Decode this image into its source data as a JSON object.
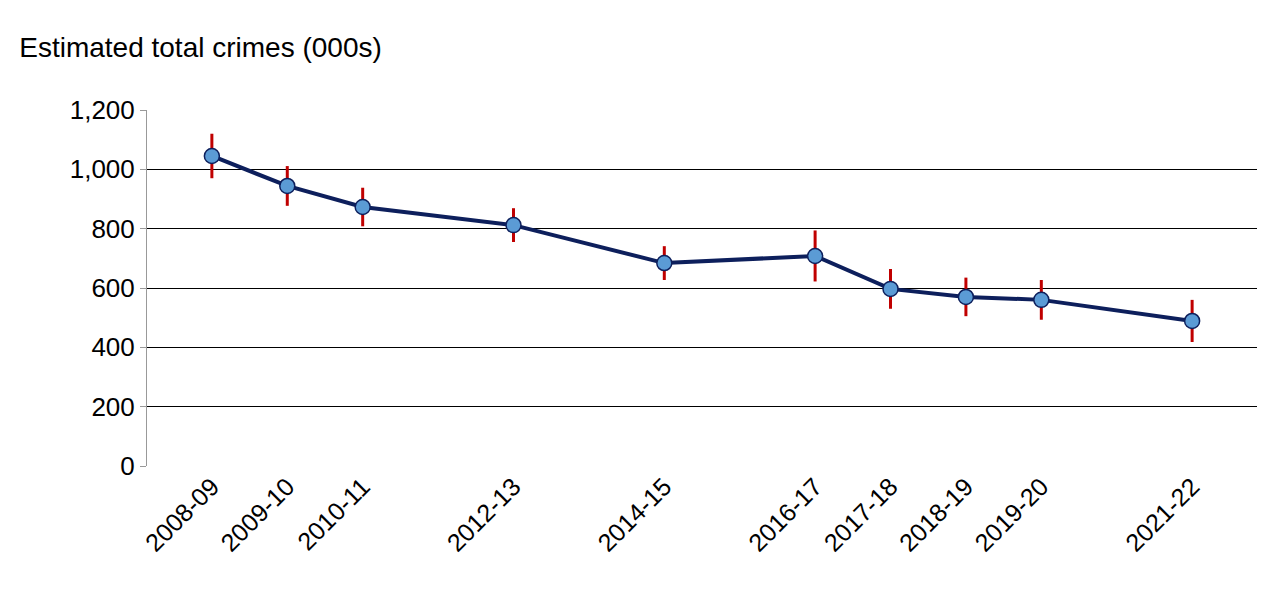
{
  "chart_data": {
    "type": "line",
    "title": "Estimated total crimes (000s)",
    "categories": [
      "2008-09",
      "2009-10",
      "2010-11",
      null,
      "2012-13",
      null,
      "2014-15",
      null,
      "2016-17",
      "2017-18",
      "2018-19",
      "2019-20",
      null,
      "2021-22"
    ],
    "values": [
      1045,
      944,
      873,
      null,
      812,
      null,
      684,
      null,
      708,
      597,
      570,
      560,
      null,
      489
    ],
    "errors": [
      75,
      67,
      65,
      null,
      57,
      null,
      57,
      null,
      86,
      67,
      65,
      67,
      null,
      71
    ],
    "color": "#0d1f5c",
    "marker": "circle",
    "ylim": [
      0,
      1200
    ],
    "yticks": [
      0,
      200,
      400,
      600,
      800,
      {
        "value": 1000,
        "label": "1,000"
      },
      {
        "value": 1200,
        "label": "1,200"
      }
    ],
    "grid": true
  }
}
